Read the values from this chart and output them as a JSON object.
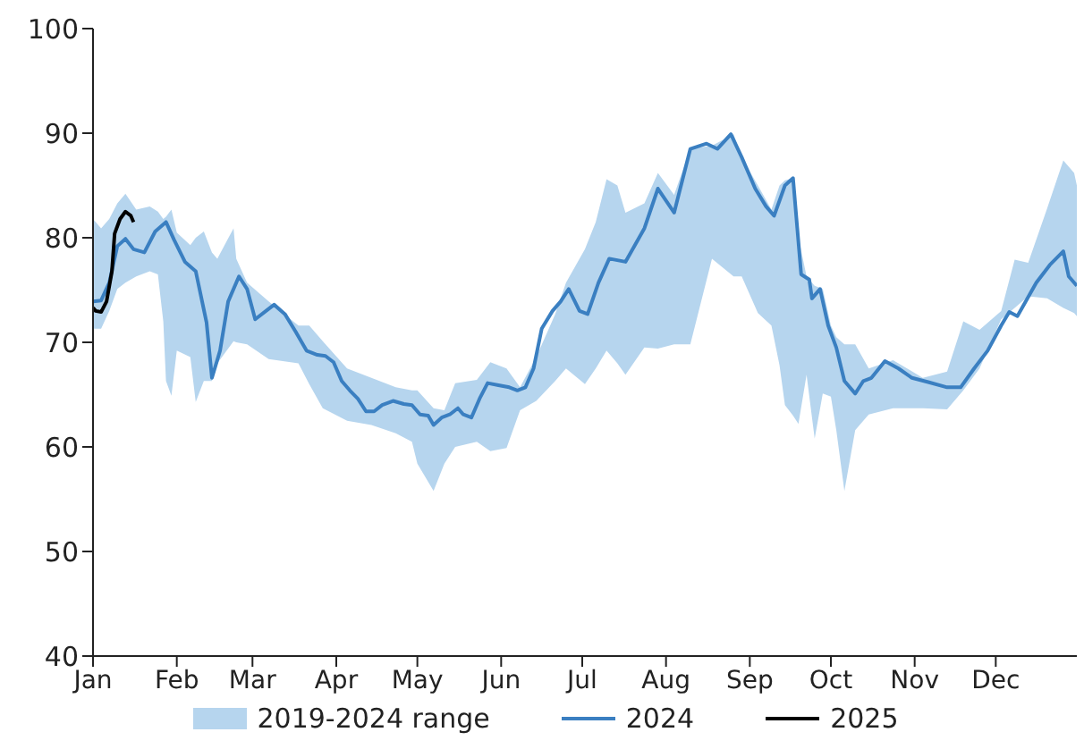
{
  "chart_data": {
    "type": "line",
    "xlim": [
      "--01-01",
      "--12-31"
    ],
    "xticks": [
      {
        "value": "--01-01",
        "label": "Jan"
      },
      {
        "value": "--02-01",
        "label": "Feb"
      },
      {
        "value": "--03-01",
        "label": "Mar"
      },
      {
        "value": "--04-01",
        "label": "Apr"
      },
      {
        "value": "--05-01",
        "label": "May"
      },
      {
        "value": "--06-01",
        "label": "Jun"
      },
      {
        "value": "--07-01",
        "label": "Jul"
      },
      {
        "value": "--08-01",
        "label": "Aug"
      },
      {
        "value": "--09-01",
        "label": "Sep"
      },
      {
        "value": "--10-01",
        "label": "Oct"
      },
      {
        "value": "--11-01",
        "label": "Nov"
      },
      {
        "value": "--12-01",
        "label": "Dec"
      }
    ],
    "ylim": [
      40,
      100
    ],
    "yticks": [
      40,
      50,
      60,
      70,
      80,
      90,
      100
    ],
    "legend": "bottom",
    "series": [
      {
        "name": "2019-2024 range",
        "type": "area",
        "color": "#b6d5ee",
        "x": [
          "--01-01",
          "--01-04",
          "--01-07",
          "--01-10",
          "--01-13",
          "--01-17",
          "--01-22",
          "--01-25",
          "--01-27",
          "--01-28",
          "--01-30",
          "--02-01",
          "--02-06",
          "--02-08",
          "--02-11",
          "--02-14",
          "--02-16",
          "--02-22",
          "--02-23",
          "--02-27",
          "--03-07",
          "--03-18",
          "--03-22",
          "--03-27",
          "--04-05",
          "--04-14",
          "--04-23",
          "--04-29",
          "--05-01",
          "--05-07",
          "--05-11",
          "--05-15",
          "--05-23",
          "--05-28",
          "--06-03",
          "--06-08",
          "--06-14",
          "--06-21",
          "--06-25",
          "--07-02",
          "--07-06",
          "--07-10",
          "--07-14",
          "--07-17",
          "--07-24",
          "--07-29",
          "--08-04",
          "--08-10",
          "--08-18",
          "--08-26",
          "--08-29",
          "--09-04",
          "--09-09",
          "--09-12",
          "--09-14",
          "--09-17",
          "--09-19",
          "--09-22",
          "--09-25",
          "--09-28",
          "--10-01",
          "--10-03",
          "--10-06",
          "--10-10",
          "--10-15",
          "--10-24",
          "--11-04",
          "--11-13",
          "--11-19",
          "--11-25",
          "--12-03",
          "--12-08",
          "--12-13",
          "--12-20",
          "--12-26",
          "--12-30",
          "--12-31"
        ],
        "values": [
          null,
          null,
          null,
          null,
          null,
          null,
          null,
          null,
          null,
          null,
          null,
          null,
          null,
          null,
          null,
          null,
          null,
          null,
          null,
          null,
          null,
          null,
          null,
          null,
          null,
          null,
          null,
          null,
          null,
          null,
          null,
          null,
          null,
          null,
          null,
          null,
          null,
          null,
          null,
          null,
          null,
          null,
          null,
          null,
          null,
          null,
          null,
          null,
          null,
          null,
          null,
          null,
          null,
          null,
          null,
          null,
          null,
          null,
          null,
          null,
          null,
          null,
          null,
          null,
          null,
          null,
          null,
          null,
          null,
          null,
          null,
          null,
          null,
          null,
          null,
          null,
          null
        ],
        "upper": [
          81.8,
          80.9,
          81.8,
          83.3,
          84.2,
          82.7,
          83,
          82.5,
          81.8,
          82,
          82.7,
          80.5,
          79.3,
          80,
          80.6,
          78.6,
          78,
          80.9,
          78,
          75.7,
          73.9,
          71.6,
          71.6,
          70.1,
          67.5,
          66.6,
          65.7,
          65.4,
          65.4,
          63.7,
          63.5,
          66.1,
          66.4,
          68.1,
          67.5,
          65.7,
          68.6,
          72.7,
          75.7,
          78.9,
          81.5,
          85.6,
          85,
          82.4,
          83.3,
          86.2,
          84.1,
          88.5,
          88.8,
          89.9,
          87.7,
          85,
          82.7,
          85,
          85.5,
          85.7,
          80,
          76.3,
          75.4,
          75.1,
          71.6,
          70.5,
          69.8,
          69.8,
          67.5,
          68.3,
          66.6,
          67.2,
          72,
          71.2,
          73,
          77.9,
          77.6,
          82.8,
          87.4,
          86.2,
          85
        ],
        "lower": [
          71.3,
          71.3,
          73,
          75.1,
          75.7,
          76.3,
          76.8,
          76.5,
          72,
          66.3,
          64.9,
          69.2,
          68.6,
          64.3,
          66.3,
          66.3,
          68,
          70.1,
          70,
          69.8,
          68.4,
          68,
          66,
          63.7,
          62.5,
          62.1,
          61.3,
          60.5,
          58.4,
          55.8,
          58.4,
          60,
          60.5,
          59.6,
          59.9,
          63.5,
          64.4,
          66.3,
          67.5,
          66,
          67.5,
          69.2,
          68,
          66.9,
          69.5,
          69.4,
          69.8,
          69.8,
          78,
          76.3,
          76.3,
          72.8,
          71.6,
          67.8,
          64,
          63,
          62.2,
          66.9,
          60.8,
          65.1,
          64.8,
          61.6,
          55.8,
          61.6,
          63.1,
          63.7,
          63.7,
          63.6,
          65.4,
          67.5,
          72.2,
          73.3,
          74.4,
          74.2,
          73.3,
          72.8,
          72.5
        ]
      },
      {
        "name": "2024",
        "color": "#3a7fc1",
        "x": [
          "--01-01",
          "--01-04",
          "--01-07",
          "--01-10",
          "--01-13",
          "--01-16",
          "--01-20",
          "--01-24",
          "--01-28",
          "--01-31",
          "--02-04",
          "--02-08",
          "--02-12",
          "--02-14",
          "--02-17",
          "--02-20",
          "--02-24",
          "--02-27",
          "--03-02",
          "--03-06",
          "--03-09",
          "--03-13",
          "--03-17",
          "--03-21",
          "--03-25",
          "--03-28",
          "--03-31",
          "--04-03",
          "--04-06",
          "--04-09",
          "--04-12",
          "--04-15",
          "--04-18",
          "--04-22",
          "--04-26",
          "--04-29",
          "--05-02",
          "--05-05",
          "--05-07",
          "--05-10",
          "--05-13",
          "--05-16",
          "--05-18",
          "--05-21",
          "--05-24",
          "--05-27",
          "--05-31",
          "--06-04",
          "--06-07",
          "--06-10",
          "--06-13",
          "--06-16",
          "--06-20",
          "--06-23",
          "--06-26",
          "--06-30",
          "--07-03",
          "--07-07",
          "--07-11",
          "--07-17",
          "--07-24",
          "--07-29",
          "--08-04",
          "--08-10",
          "--08-16",
          "--08-20",
          "--08-25",
          "--08-29",
          "--09-03",
          "--09-07",
          "--09-10",
          "--09-14",
          "--09-17",
          "--09-20",
          "--09-23",
          "--09-24",
          "--09-27",
          "--09-30",
          "--10-03",
          "--10-06",
          "--10-10",
          "--10-13",
          "--10-16",
          "--10-21",
          "--10-26",
          "--10-31",
          "--11-06",
          "--11-13",
          "--11-18",
          "--11-23",
          "--11-28",
          "--12-03",
          "--12-06",
          "--12-09",
          "--12-16",
          "--12-21",
          "--12-26",
          "--12-28",
          "--12-31"
        ],
        "values": [
          73.9,
          74,
          75.7,
          79.2,
          79.9,
          78.9,
          78.6,
          80.6,
          81.5,
          79.8,
          77.7,
          76.8,
          71.9,
          66.6,
          69.2,
          73.9,
          76.3,
          75.1,
          72.2,
          73,
          73.6,
          72.7,
          71,
          69.2,
          68.8,
          68.7,
          68.1,
          66.3,
          65.4,
          64.6,
          63.4,
          63.4,
          64,
          64.4,
          64.1,
          64,
          63.1,
          63,
          62.1,
          62.8,
          63.1,
          63.7,
          63.1,
          62.8,
          64.6,
          66.1,
          65.9,
          65.7,
          65.4,
          65.7,
          67.5,
          71.3,
          73,
          73.9,
          75.1,
          73,
          72.7,
          75.7,
          78,
          77.7,
          80.9,
          84.7,
          82.4,
          88.5,
          89,
          88.5,
          89.9,
          87.7,
          84.7,
          83,
          82.1,
          85,
          85.7,
          76.5,
          76,
          74.2,
          75.1,
          71.6,
          69.5,
          66.3,
          65.1,
          66.3,
          66.6,
          68.2,
          67.5,
          66.6,
          66.2,
          65.7,
          65.7,
          67.5,
          69.2,
          71.6,
          72.9,
          72.5,
          75.7,
          77.4,
          78.7,
          76.3,
          75.4
        ]
      },
      {
        "name": "2025",
        "color": "#000000",
        "x": [
          "--01-01",
          "--01-02",
          "--01-04",
          "--01-06",
          "--01-08",
          "--01-09",
          "--01-11",
          "--01-13",
          "--01-15",
          "--01-16"
        ],
        "values": [
          73.3,
          73,
          72.9,
          73.9,
          76.8,
          80.4,
          81.8,
          82.5,
          82.1,
          81.5
        ]
      }
    ]
  }
}
